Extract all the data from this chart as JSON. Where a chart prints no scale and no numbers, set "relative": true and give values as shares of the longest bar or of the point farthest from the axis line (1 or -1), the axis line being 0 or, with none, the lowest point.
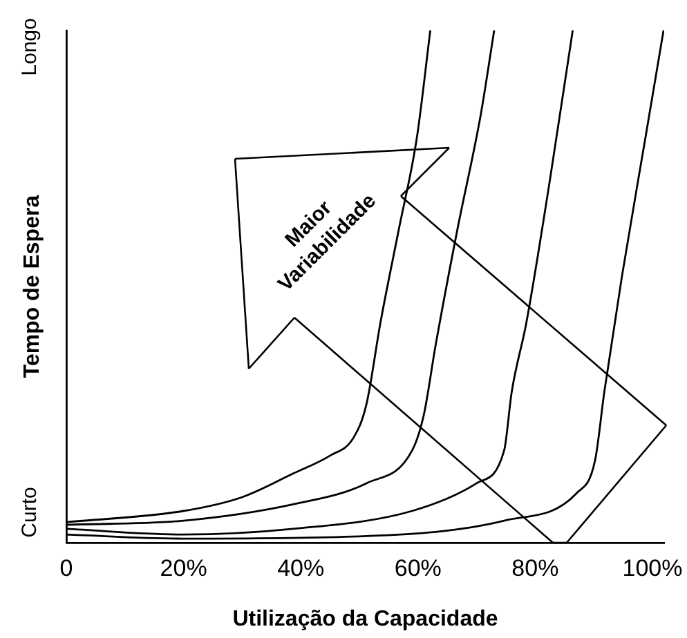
{
  "chart_data": {
    "type": "line",
    "relative": true,
    "xlabel": "Utilização da Capacidade",
    "ylabel": "Tempo de Espera",
    "annotations": [
      "Curto",
      "Longo",
      "Maior Variabilidade"
    ],
    "xlim": [
      0,
      102
    ],
    "xticks": [
      0,
      {
        "value": 20,
        "label": "20%"
      },
      {
        "value": 40,
        "label": "40%"
      },
      {
        "value": 60,
        "label": "60%"
      },
      {
        "value": 80,
        "label": "80%"
      },
      {
        "value": 100,
        "label": "100%"
      }
    ],
    "grid": false,
    "legend": false,
    "marker": "none",
    "line_style": "solid",
    "series": [
      {
        "color": "#000000",
        "x": [
          0,
          20,
          30,
          38.7,
          45,
          49,
          51.2,
          53.6,
          56.7,
          59.8,
          62.1
        ],
        "values": [
          0.04,
          0.062,
          0.089,
          0.135,
          0.17,
          0.205,
          0.27,
          0.43,
          0.61,
          0.79,
          1.0
        ]
      },
      {
        "color": "#000000",
        "x": [
          0,
          20,
          38.7,
          51.2,
          59,
          61,
          63,
          66.7,
          70.7,
          73
        ],
        "values": [
          0.035,
          0.043,
          0.075,
          0.116,
          0.18,
          0.25,
          0.385,
          0.61,
          0.835,
          1.0
        ]
      },
      {
        "color": "#000000",
        "x": [
          0,
          20,
          38.7,
          59,
          70,
          74.7,
          76,
          78.5,
          82.4,
          86.4
        ],
        "values": [
          0.027,
          0.016,
          0.027,
          0.062,
          0.116,
          0.18,
          0.295,
          0.43,
          0.7,
          1.0
        ]
      },
      {
        "color": "#000000",
        "x": [
          0,
          20,
          51.3,
          74.7,
          87.1,
          90.2,
          91.8,
          94.8,
          98.8,
          101.9
        ],
        "values": [
          0.016,
          0.008,
          0.013,
          0.043,
          0.097,
          0.16,
          0.295,
          0.52,
          0.79,
          1.0
        ]
      }
    ]
  }
}
